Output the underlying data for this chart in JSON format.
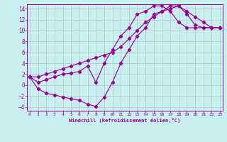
{
  "xlabel": "Windchill (Refroidissement éolien,°C)",
  "bg_color": "#c8f0f0",
  "line_color": "#990099",
  "grid_color": "#b0b0b0",
  "xlim": [
    -0.3,
    23.3
  ],
  "ylim": [
    -4.7,
    14.8
  ],
  "xticks": [
    0,
    1,
    2,
    3,
    4,
    5,
    6,
    7,
    8,
    9,
    10,
    11,
    12,
    13,
    14,
    15,
    16,
    17,
    18,
    19,
    20,
    21,
    22,
    23
  ],
  "yticks": [
    -4,
    -2,
    0,
    2,
    4,
    6,
    8,
    10,
    12,
    14
  ],
  "line1_x": [
    0,
    1,
    2,
    3,
    4,
    5,
    6,
    7,
    8,
    9,
    10,
    11,
    12,
    13,
    14,
    15,
    16,
    17,
    18,
    19,
    20,
    21,
    22,
    23
  ],
  "line1_y": [
    1.5,
    -0.7,
    -1.5,
    -1.8,
    -2.2,
    -2.5,
    -2.8,
    -3.5,
    -3.9,
    -2.2,
    0.5,
    4.0,
    6.5,
    9.0,
    10.5,
    13.0,
    13.5,
    14.5,
    14.5,
    13.0,
    11.0,
    10.5,
    10.5,
    10.5
  ],
  "line2_x": [
    0,
    1,
    2,
    3,
    4,
    5,
    6,
    7,
    8,
    9,
    10,
    11,
    12,
    13,
    14,
    15,
    16,
    17,
    18,
    19,
    20,
    21,
    22,
    23
  ],
  "line2_y": [
    1.5,
    1.5,
    2.0,
    2.5,
    3.0,
    3.5,
    4.0,
    4.5,
    5.0,
    5.5,
    6.0,
    7.0,
    8.5,
    10.0,
    11.5,
    12.5,
    13.5,
    14.0,
    14.5,
    13.5,
    12.5,
    11.5,
    10.5,
    10.5
  ],
  "line3_x": [
    0,
    1,
    2,
    3,
    4,
    5,
    6,
    7,
    8,
    9,
    10,
    11,
    12,
    13,
    14,
    15,
    16,
    17,
    18,
    19,
    20,
    21,
    22,
    23
  ],
  "line3_y": [
    1.5,
    0.5,
    1.0,
    1.5,
    2.0,
    2.2,
    2.5,
    3.5,
    0.5,
    4.0,
    6.5,
    9.0,
    10.5,
    13.0,
    13.5,
    14.5,
    14.5,
    13.5,
    11.5,
    10.5,
    10.5,
    10.5,
    10.5,
    10.5
  ]
}
